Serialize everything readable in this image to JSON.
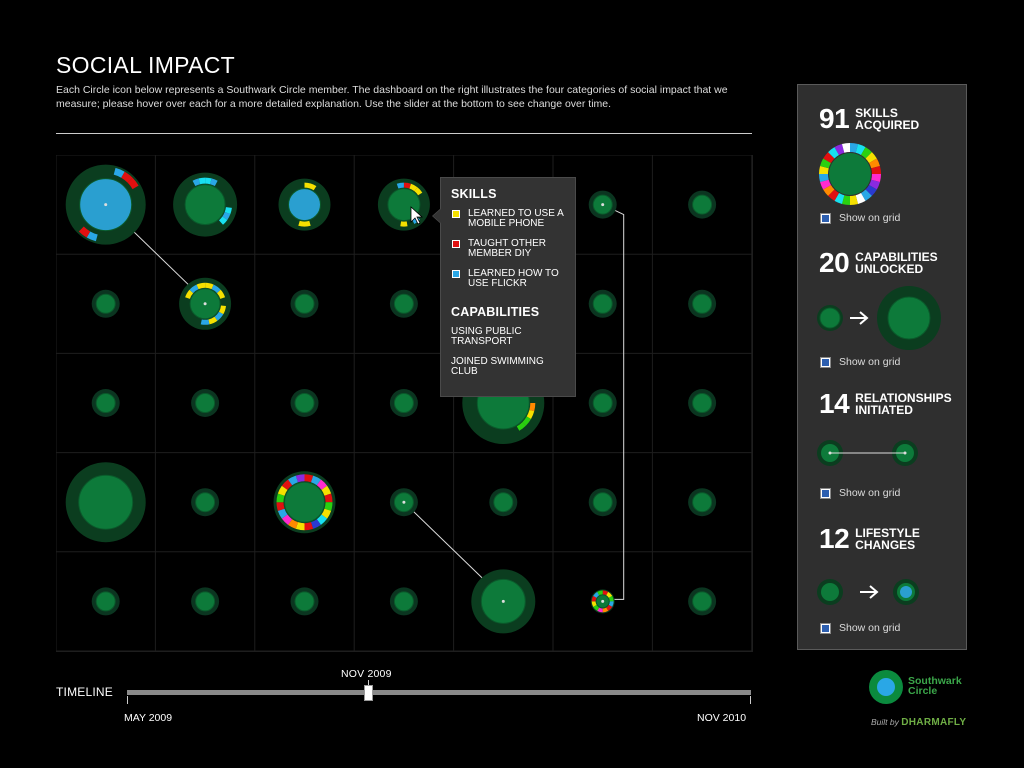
{
  "header": {
    "title": "SOCIAL IMPACT",
    "intro": "Each Circle icon below represents a Southwark Circle member. The dashboard on the right illustrates the four categories of social impact that we measure; please hover over each for a more detailed explanation. Use the slider at the bottom to see change over time."
  },
  "tooltip": {
    "skills_heading": "SKILLS",
    "skills": [
      {
        "label": "LEARNED TO USE A MOBILE PHONE",
        "color": "#f5e000"
      },
      {
        "label": "TAUGHT OTHER MEMBER DIY",
        "color": "#e01010"
      },
      {
        "label": "LEARNED HOW TO USE FLICKR",
        "color": "#2aa7e6"
      }
    ],
    "capabilities_heading": "CAPABILITIES",
    "capabilities": [
      "USING PUBLIC TRANSPORT",
      "JOINED SWIMMING CLUB"
    ]
  },
  "dashboard": {
    "skills": {
      "count": "91",
      "label": "SKILLS ACQUIRED",
      "show": "Show on grid"
    },
    "capabilities": {
      "count": "20",
      "label": "CAPABILITIES UNLOCKED",
      "show": "Show on grid"
    },
    "relationships": {
      "count": "14",
      "label": "RELATIONSHIPS INITIATED",
      "show": "Show on grid"
    },
    "lifestyle": {
      "count": "12",
      "label": "LIFESTYLE CHANGES",
      "show": "Show on grid"
    }
  },
  "timeline": {
    "label": "TIMELINE",
    "start": "MAY 2009",
    "current": "NOV 2009",
    "end": "NOV 2010",
    "position_fraction": 0.38
  },
  "logo": {
    "name": "Southwark Circle",
    "line1": "Southwark",
    "line2": "Circle"
  },
  "credit": {
    "prefix": "Built by",
    "brand": "DHARMAFLY"
  },
  "colors": {
    "member_fill": "#0d7a3a",
    "member_halo": "#0b3d1f",
    "highlight": "#2a9fd0",
    "segments": [
      "#e01010",
      "#f5e000",
      "#2aa7e6",
      "#18e0f0",
      "#2ad010",
      "#ff8a00",
      "#ff2ad0",
      "#2a3ad0",
      "#8a2ae0",
      "#ffffff"
    ]
  }
}
